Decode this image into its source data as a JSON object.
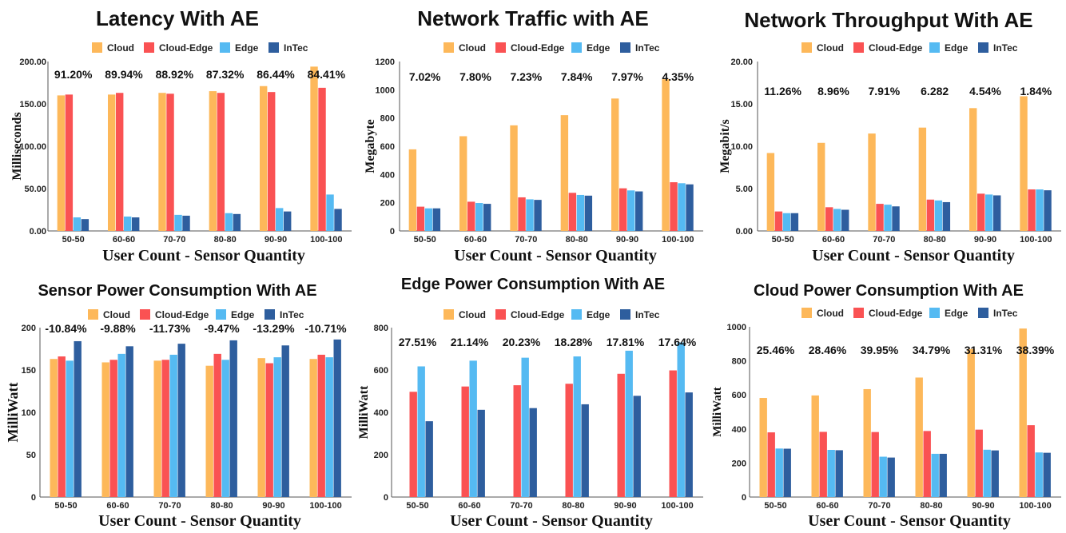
{
  "colors": {
    "Cloud": "#FDB85A",
    "Cloud-Edge": "#FA5253",
    "Edge": "#55BAF2",
    "InTec": "#2E5E9E"
  },
  "chart_data": [
    {
      "type": "bar",
      "title": "Latency With AE",
      "xlabel": "User Count - Sensor Quantity",
      "ylabel": "Milliseconds",
      "ylim": [
        0,
        200
      ],
      "yticks": [
        "0.00",
        "50.00",
        "100.00",
        "150.00",
        "200.00"
      ],
      "categories": [
        "50-50",
        "60-60",
        "70-70",
        "80-80",
        "90-90",
        "100-100"
      ],
      "series": [
        {
          "name": "Cloud",
          "values": [
            160,
            161,
            163,
            165,
            171,
            194
          ]
        },
        {
          "name": "Cloud-Edge",
          "values": [
            161,
            163,
            162,
            163,
            164,
            169
          ]
        },
        {
          "name": "Edge",
          "values": [
            16,
            17,
            19,
            21,
            27,
            43
          ]
        },
        {
          "name": "InTec",
          "values": [
            14,
            16,
            18,
            20,
            23,
            26
          ]
        }
      ],
      "annotations": [
        "91.20%",
        "89.94%",
        "88.92%",
        "87.32%",
        "86.44%",
        "84.41%"
      ]
    },
    {
      "type": "bar",
      "title": "Network Traffic with AE",
      "xlabel": "User Count - Sensor Quantity",
      "ylabel": "Megabyte",
      "ylim": [
        0,
        1200
      ],
      "yticks": [
        "0",
        "200",
        "400",
        "600",
        "800",
        "1000",
        "1200"
      ],
      "categories": [
        "50-50",
        "60-60",
        "70-70",
        "80-80",
        "90-90",
        "100-100"
      ],
      "series": [
        {
          "name": "Cloud",
          "values": [
            578,
            671,
            748,
            820,
            938,
            1075
          ]
        },
        {
          "name": "Cloud-Edge",
          "values": [
            172,
            207,
            238,
            270,
            302,
            345
          ]
        },
        {
          "name": "Edge",
          "values": [
            160,
            198,
            224,
            255,
            287,
            338
          ]
        },
        {
          "name": "InTec",
          "values": [
            160,
            192,
            220,
            250,
            280,
            330
          ]
        }
      ],
      "annotations": [
        "7.02%",
        "7.80%",
        "7.23%",
        "7.84%",
        "7.97%",
        "4.35%"
      ]
    },
    {
      "type": "bar",
      "title": "Network Throughput With AE",
      "xlabel": "User Count - Sensor Quantity",
      "ylabel": "Megabit/s",
      "ylim": [
        0,
        20
      ],
      "yticks": [
        "0.00",
        "5.00",
        "10.00",
        "15.00",
        "20.00"
      ],
      "categories": [
        "50-50",
        "60-60",
        "70-70",
        "80-80",
        "90-90",
        "100-100"
      ],
      "series": [
        {
          "name": "Cloud",
          "values": [
            9.2,
            10.4,
            11.5,
            12.2,
            14.5,
            15.9
          ]
        },
        {
          "name": "Cloud-Edge",
          "values": [
            2.3,
            2.8,
            3.2,
            3.7,
            4.4,
            4.9
          ]
        },
        {
          "name": "Edge",
          "values": [
            2.1,
            2.6,
            3.1,
            3.6,
            4.3,
            4.9
          ]
        },
        {
          "name": "InTec",
          "values": [
            2.1,
            2.5,
            2.9,
            3.4,
            4.2,
            4.8
          ]
        }
      ],
      "annotations": [
        "11.26%",
        "8.96%",
        "7.91%",
        "6.282",
        "4.54%",
        "1.84%"
      ]
    },
    {
      "type": "bar",
      "title": "Sensor Power Consumption With AE",
      "xlabel": "User Count - Sensor Quantity",
      "ylabel": "MilliWatt",
      "ylim": [
        0,
        200
      ],
      "yticks": [
        "0",
        "50",
        "100",
        "150",
        "200"
      ],
      "categories": [
        "50-50",
        "60-60",
        "70-70",
        "80-80",
        "90-90",
        "100-100"
      ],
      "series": [
        {
          "name": "Cloud",
          "values": [
            163,
            159,
            161,
            155,
            164,
            163
          ]
        },
        {
          "name": "Cloud-Edge",
          "values": [
            166,
            162,
            162,
            169,
            158,
            168
          ]
        },
        {
          "name": "Edge",
          "values": [
            161,
            169,
            168,
            162,
            165,
            165
          ]
        },
        {
          "name": "InTec",
          "values": [
            184,
            178,
            181,
            185,
            179,
            186
          ]
        }
      ],
      "annotations": [
        "-10.84%",
        "-9.88%",
        "-11.73%",
        "-9.47%",
        "-13.29%",
        "-10.71%"
      ]
    },
    {
      "type": "bar",
      "title": "Edge Power Consumption With AE",
      "xlabel": "User Count - Sensor Quantity",
      "ylabel": "MilliWatt",
      "ylim": [
        0,
        800
      ],
      "yticks": [
        "0",
        "200",
        "400",
        "600",
        "800"
      ],
      "categories": [
        "50-50",
        "60-60",
        "70-70",
        "80-80",
        "90-90",
        "100-100"
      ],
      "series": [
        {
          "name": "Cloud",
          "values": [
            0,
            0,
            0,
            0,
            0,
            0
          ]
        },
        {
          "name": "Cloud-Edge",
          "values": [
            497,
            522,
            528,
            535,
            582,
            598
          ]
        },
        {
          "name": "Edge",
          "values": [
            617,
            644,
            658,
            664,
            691,
            730
          ]
        },
        {
          "name": "InTec",
          "values": [
            358,
            412,
            420,
            438,
            478,
            494
          ]
        }
      ],
      "annotations": [
        "27.51%",
        "21.14%",
        "20.23%",
        "18.28%",
        "17.81%",
        "17.64%"
      ]
    },
    {
      "type": "bar",
      "title": "Cloud Power Consumption With AE",
      "xlabel": "User Count - Sensor Quantity",
      "ylabel": "MilliWatt",
      "ylim": [
        0,
        1000
      ],
      "yticks": [
        "0",
        "200",
        "400",
        "600",
        "800",
        "1000"
      ],
      "categories": [
        "50-50",
        "60-60",
        "70-70",
        "80-80",
        "90-90",
        "100-100"
      ],
      "series": [
        {
          "name": "Cloud",
          "values": [
            582,
            597,
            634,
            702,
            870,
            990
          ]
        },
        {
          "name": "Cloud-Edge",
          "values": [
            380,
            383,
            382,
            388,
            396,
            422
          ]
        },
        {
          "name": "Edge",
          "values": [
            285,
            277,
            237,
            254,
            278,
            262
          ]
        },
        {
          "name": "InTec",
          "values": [
            284,
            275,
            232,
            254,
            274,
            260
          ]
        }
      ],
      "annotations": [
        "25.46%",
        "28.46%",
        "39.95%",
        "34.79%",
        "31.31%",
        "38.39%"
      ]
    }
  ]
}
